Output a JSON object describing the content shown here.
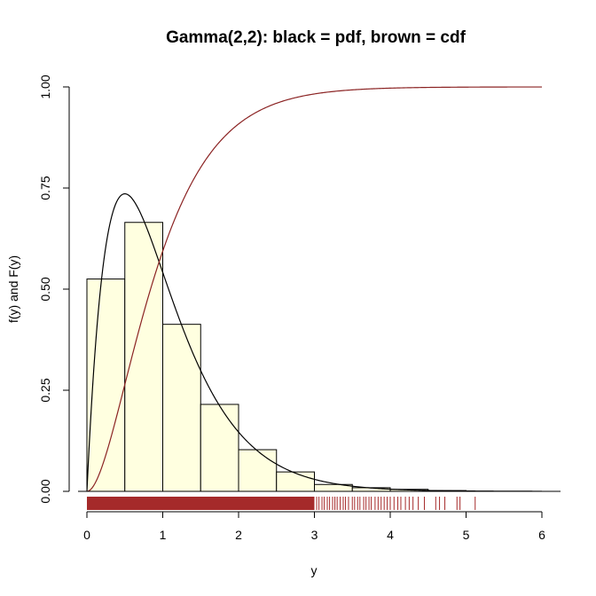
{
  "chart_data": {
    "type": "bar",
    "title": "Gamma(2,2): black = pdf, brown = cdf",
    "xlabel": "y",
    "ylabel": "f(y) and F(y)",
    "xlim": [
      0,
      6.2
    ],
    "ylim": [
      0,
      1.0
    ],
    "x_ticks": [
      "0",
      "1",
      "2",
      "3",
      "4",
      "5",
      "6"
    ],
    "y_ticks": [
      "0.00",
      "0.25",
      "0.50",
      "0.75",
      "1.00"
    ],
    "x_tick_values": [
      0,
      1,
      2,
      3,
      4,
      5,
      6
    ],
    "y_tick_values": [
      0,
      0.25,
      0.5,
      0.75,
      1.0
    ],
    "histogram": {
      "bin_edges": [
        0,
        0.5,
        1,
        1.5,
        2,
        2.5,
        3,
        3.5,
        4,
        4.5,
        5
      ],
      "densities": [
        0.525,
        0.665,
        0.413,
        0.215,
        0.103,
        0.048,
        0.017,
        0.009,
        0.005,
        0.002
      ],
      "fill_color": "#ffffe0",
      "stroke_color": "#000000"
    },
    "series": [
      {
        "kind": "pdf",
        "shape": 2,
        "rate": 2,
        "color": "#000000"
      },
      {
        "kind": "cdf",
        "shape": 2,
        "rate": 2,
        "color": "#8b2323"
      }
    ],
    "rug": {
      "color": "#a52a2a",
      "dense_until": 3.0,
      "sparse_values": [
        3.03,
        3.06,
        3.1,
        3.13,
        3.17,
        3.2,
        3.24,
        3.27,
        3.3,
        3.34,
        3.38,
        3.41,
        3.45,
        3.5,
        3.53,
        3.57,
        3.6,
        3.65,
        3.68,
        3.72,
        3.75,
        3.8,
        3.84,
        3.88,
        3.92,
        3.96,
        4.0,
        4.05,
        4.1,
        4.14,
        4.2,
        4.25,
        4.3,
        4.37,
        4.45,
        4.6,
        4.65,
        4.72,
        4.88,
        4.92,
        5.12
      ]
    }
  }
}
